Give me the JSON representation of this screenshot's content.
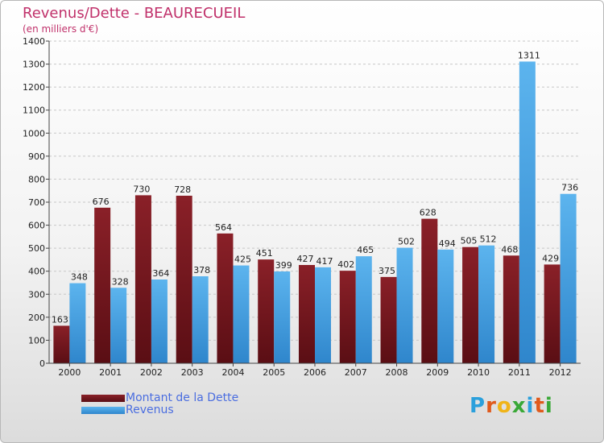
{
  "header": {
    "title": "Revenus/Dette - BEAURECUEIL",
    "subtitle": "(en milliers d'€)"
  },
  "colors": {
    "dette": "#7a1820",
    "revenus": "#4aa6e6",
    "title": "#c0306a",
    "legend_text": "#4a6de0"
  },
  "legend": {
    "position": "bottom-left",
    "items": [
      {
        "label": "Montant de la Dette",
        "color_key": "dette"
      },
      {
        "label": "Revenus",
        "color_key": "revenus"
      }
    ]
  },
  "logo": {
    "text": "Proxiti"
  },
  "chart_data": {
    "type": "bar",
    "title": "Revenus/Dette - BEAURECUEIL",
    "subtitle": "(en milliers d'€)",
    "xlabel": "",
    "ylabel": "",
    "ylim": [
      0,
      1400
    ],
    "yticks": [
      0,
      100,
      200,
      300,
      400,
      500,
      600,
      700,
      800,
      900,
      1000,
      1100,
      1200,
      1300,
      1400
    ],
    "grid": true,
    "categories": [
      "2000",
      "2001",
      "2002",
      "2003",
      "2004",
      "2005",
      "2006",
      "2007",
      "2008",
      "2009",
      "2010",
      "2011",
      "2012"
    ],
    "series": [
      {
        "name": "Montant de la Dette",
        "values": [
          163,
          676,
          730,
          728,
          564,
          451,
          427,
          402,
          375,
          628,
          505,
          468,
          429
        ]
      },
      {
        "name": "Revenus",
        "values": [
          348,
          328,
          364,
          378,
          425,
          399,
          417,
          465,
          502,
          494,
          512,
          1311,
          736
        ]
      }
    ]
  }
}
